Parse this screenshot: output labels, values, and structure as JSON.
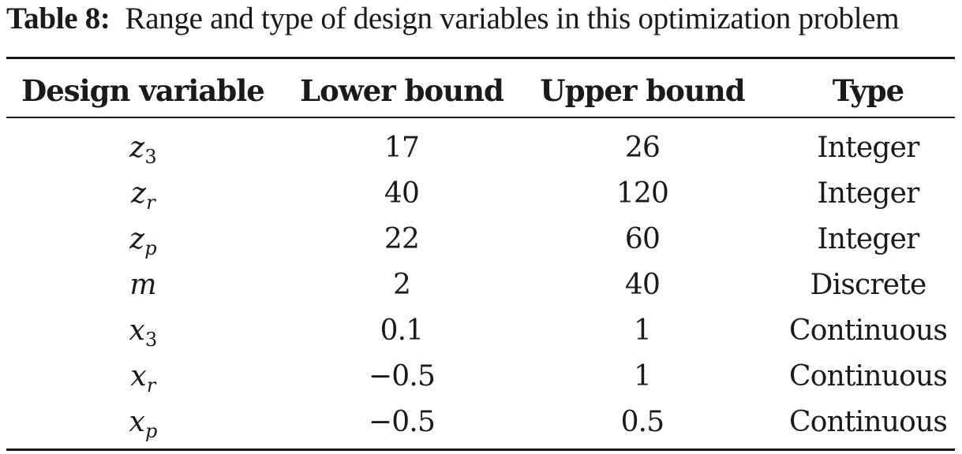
{
  "caption": {
    "label": "Table 8:",
    "text": "Range and type of design variables in this optimization problem"
  },
  "table": {
    "headers": [
      "Design variable",
      "Lower bound",
      "Upper bound",
      "Type"
    ],
    "rows": [
      {
        "var": "z",
        "sub": "3",
        "lower": "17",
        "upper": "26",
        "type": "Integer"
      },
      {
        "var": "z",
        "sub": "r",
        "lower": "40",
        "upper": "120",
        "type": "Integer"
      },
      {
        "var": "z",
        "sub": "p",
        "lower": "22",
        "upper": "60",
        "type": "Integer"
      },
      {
        "var": "m",
        "sub": "",
        "lower": "2",
        "upper": "40",
        "type": "Discrete"
      },
      {
        "var": "x",
        "sub": "3",
        "lower": "0.1",
        "upper": "1",
        "type": "Continuous"
      },
      {
        "var": "x",
        "sub": "r",
        "lower": "−0.5",
        "upper": "1",
        "type": "Continuous"
      },
      {
        "var": "x",
        "sub": "p",
        "lower": "−0.5",
        "upper": "0.5",
        "type": "Continuous"
      }
    ]
  }
}
